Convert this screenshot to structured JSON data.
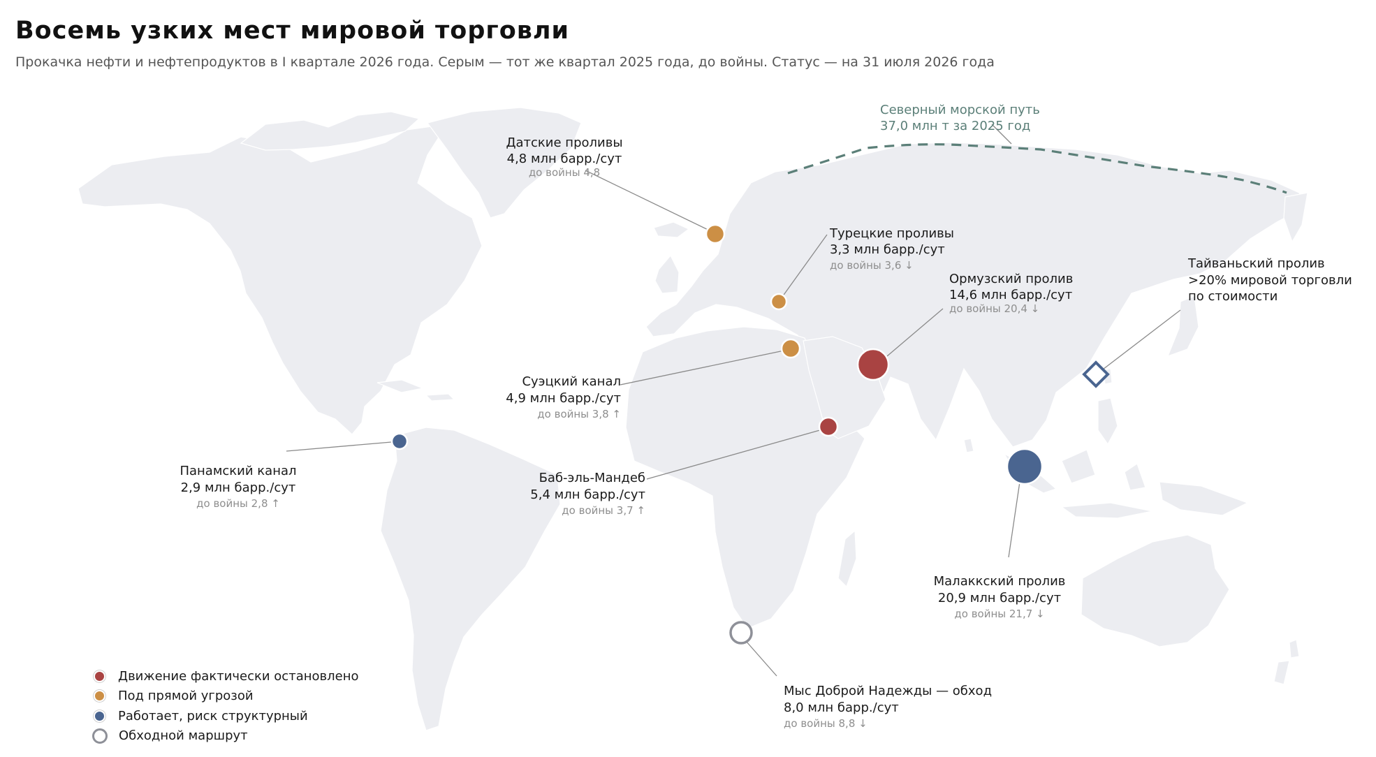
{
  "title": "Восемь узких мест мировой торговли",
  "subtitle": "Прокачка нефти и нефтепродуктов в I квартале 2026 года. Серым — тот же квартал 2025 года, до войны. Статус — на 31 июля 2026 года",
  "colors": {
    "stopped": "#a94342",
    "threat": "#cc8f45",
    "structural": "#4a6590",
    "bypass": "#8e9098",
    "land": "#ecedf1",
    "route": "#5b7f78"
  },
  "chokepoints": [
    {
      "id": "danish",
      "name": "Датские проливы",
      "value": "4,8 млн барр./сут",
      "prewar": "до войны 4,8",
      "status": "threat",
      "flow_mbd": 4.8
    },
    {
      "id": "turkish",
      "name": "Турецкие проливы",
      "value": "3,3 млн барр./сут",
      "prewar": "до войны 3,6 ↓",
      "status": "threat",
      "flow_mbd": 3.3
    },
    {
      "id": "hormuz",
      "name": "Ормузский пролив",
      "value": "14,6 млн барр./сут",
      "prewar": "до войны 20,4 ↓",
      "status": "stopped",
      "flow_mbd": 14.6
    },
    {
      "id": "suez",
      "name": "Суэцкий канал",
      "value": "4,9 млн барр./сут",
      "prewar": "до войны 3,8 ↑",
      "status": "threat",
      "flow_mbd": 4.9
    },
    {
      "id": "bab",
      "name": "Баб-эль-Мандеб",
      "value": "5,4 млн барр./сут",
      "prewar": "до войны 3,7 ↑",
      "status": "stopped",
      "flow_mbd": 5.4
    },
    {
      "id": "panama",
      "name": "Панамский канал",
      "value": "2,9 млн барр./сут",
      "prewar": "до войны 2,8 ↑",
      "status": "structural",
      "flow_mbd": 2.9
    },
    {
      "id": "malacca",
      "name": "Малаккский пролив",
      "value": "20,9 млн барр./сут",
      "prewar": "до войны 21,7 ↓",
      "status": "structural",
      "flow_mbd": 20.9
    },
    {
      "id": "cape",
      "name": "Мыс Доброй Надежды — обход",
      "value": "8,0 млн барр./сут",
      "prewar": "до войны 8,8 ↓",
      "status": "bypass",
      "flow_mbd": 8.0
    }
  ],
  "taiwan": {
    "name": "Тайваньский пролив",
    "line2": ">20% мировой торговли",
    "line3": "по стоимости"
  },
  "nsr": {
    "name": "Северный морской путь",
    "value": "37,0 млн т за 2025 год"
  },
  "legend": [
    {
      "label": "Движение фактически остановлено",
      "status": "stopped"
    },
    {
      "label": "Под прямой угрозой",
      "status": "threat"
    },
    {
      "label": "Работает, риск структурный",
      "status": "structural"
    },
    {
      "label": "Обходной маршрут",
      "status": "bypass"
    }
  ]
}
